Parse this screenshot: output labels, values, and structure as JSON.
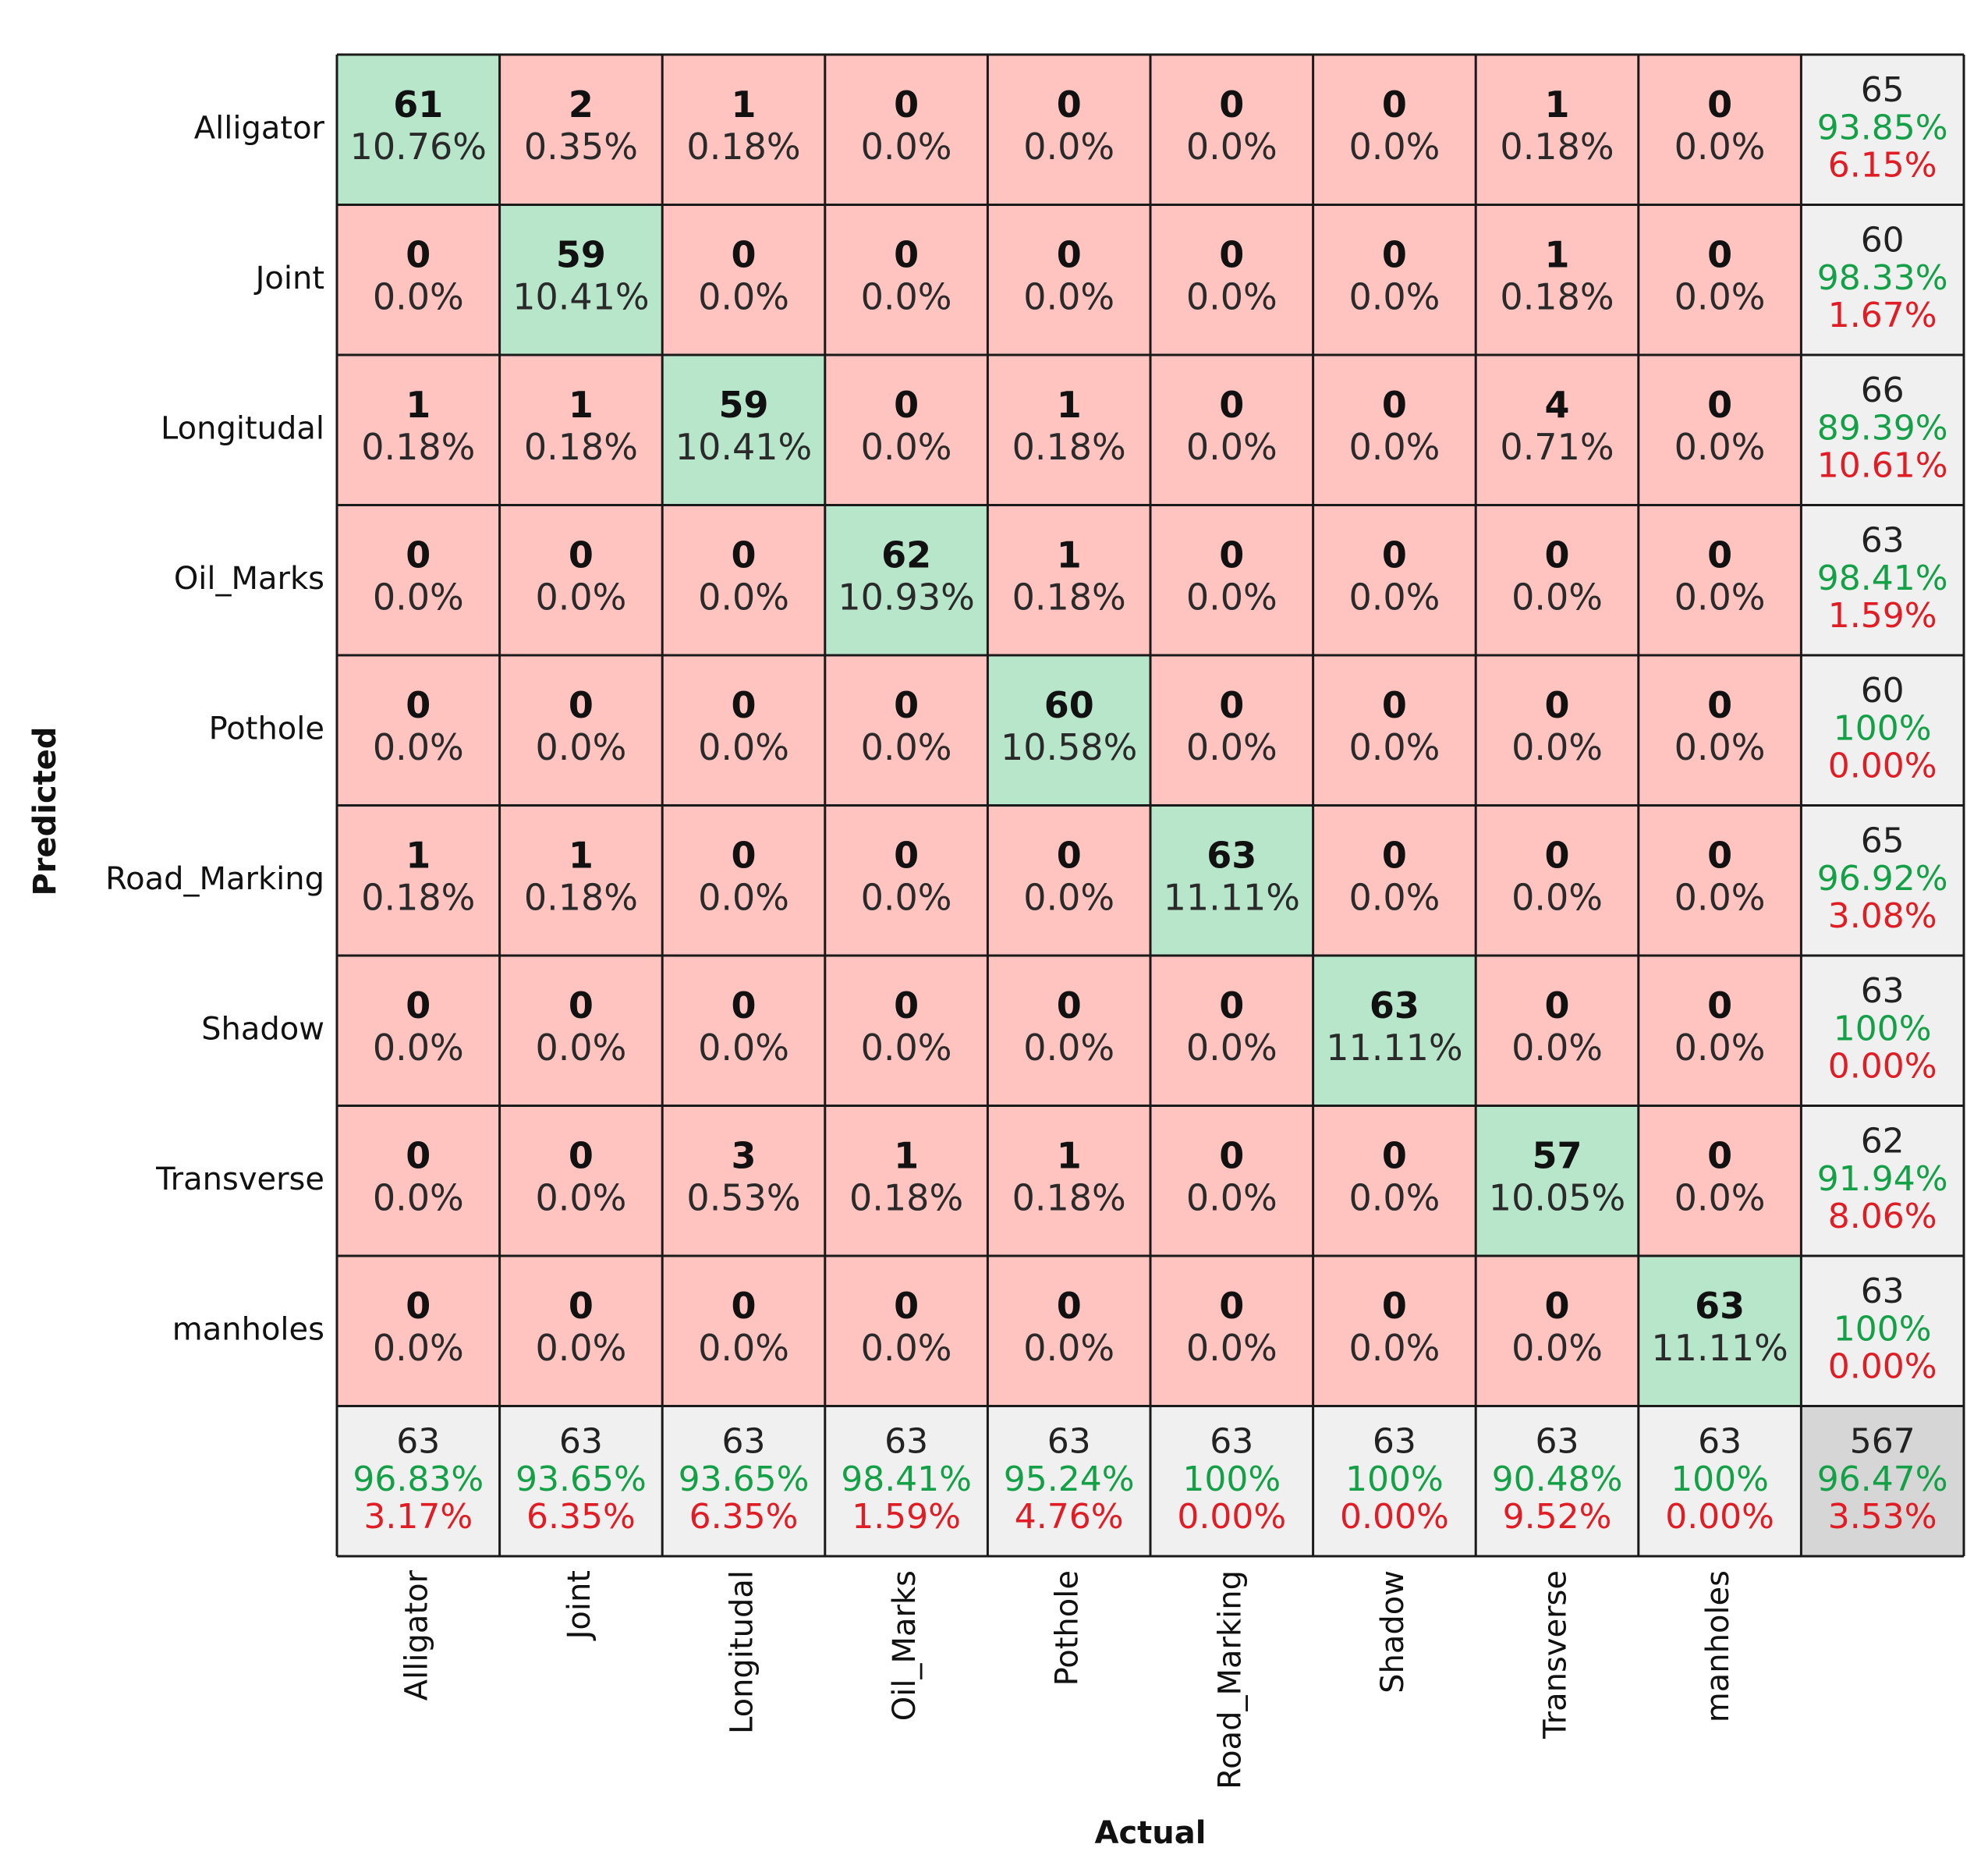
{
  "chart_data": {
    "type": "heatmap",
    "title": "",
    "xlabel": "Actual",
    "ylabel": "Predicted",
    "categories": [
      "Alligator",
      "Joint",
      "Longitudal",
      "Oil_Marks",
      "Pothole",
      "Road_Marking",
      "Shadow",
      "Transverse",
      "manholes"
    ],
    "matrix": [
      [
        61,
        2,
        1,
        0,
        0,
        0,
        0,
        1,
        0
      ],
      [
        0,
        59,
        0,
        0,
        0,
        0,
        0,
        1,
        0
      ],
      [
        1,
        1,
        59,
        0,
        1,
        0,
        0,
        4,
        0
      ],
      [
        0,
        0,
        0,
        62,
        1,
        0,
        0,
        0,
        0
      ],
      [
        0,
        0,
        0,
        0,
        60,
        0,
        0,
        0,
        0
      ],
      [
        1,
        1,
        0,
        0,
        0,
        63,
        0,
        0,
        0
      ],
      [
        0,
        0,
        0,
        0,
        0,
        0,
        63,
        0,
        0
      ],
      [
        0,
        0,
        3,
        1,
        1,
        0,
        0,
        57,
        0
      ],
      [
        0,
        0,
        0,
        0,
        0,
        0,
        0,
        0,
        63
      ]
    ],
    "matrix_percent": [
      [
        "10.76%",
        "0.35%",
        "0.18%",
        "0.0%",
        "0.0%",
        "0.0%",
        "0.0%",
        "0.18%",
        "0.0%"
      ],
      [
        "0.0%",
        "10.41%",
        "0.0%",
        "0.0%",
        "0.0%",
        "0.0%",
        "0.0%",
        "0.18%",
        "0.0%"
      ],
      [
        "0.18%",
        "0.18%",
        "10.41%",
        "0.0%",
        "0.18%",
        "0.0%",
        "0.0%",
        "0.71%",
        "0.0%"
      ],
      [
        "0.0%",
        "0.0%",
        "0.0%",
        "10.93%",
        "0.18%",
        "0.0%",
        "0.0%",
        "0.0%",
        "0.0%"
      ],
      [
        "0.0%",
        "0.0%",
        "0.0%",
        "0.0%",
        "10.58%",
        "0.0%",
        "0.0%",
        "0.0%",
        "0.0%"
      ],
      [
        "0.18%",
        "0.18%",
        "0.0%",
        "0.0%",
        "0.0%",
        "11.11%",
        "0.0%",
        "0.0%",
        "0.0%"
      ],
      [
        "0.0%",
        "0.0%",
        "0.0%",
        "0.0%",
        "0.0%",
        "0.0%",
        "11.11%",
        "0.0%",
        "0.0%"
      ],
      [
        "0.0%",
        "0.0%",
        "0.53%",
        "0.18%",
        "0.18%",
        "0.0%",
        "0.0%",
        "10.05%",
        "0.0%"
      ],
      [
        "0.0%",
        "0.0%",
        "0.0%",
        "0.0%",
        "0.0%",
        "0.0%",
        "0.0%",
        "0.0%",
        "11.11%"
      ]
    ],
    "row_summary": [
      {
        "total": "65",
        "correct": "93.85%",
        "error": "6.15%"
      },
      {
        "total": "60",
        "correct": "98.33%",
        "error": "1.67%"
      },
      {
        "total": "66",
        "correct": "89.39%",
        "error": "10.61%"
      },
      {
        "total": "63",
        "correct": "98.41%",
        "error": "1.59%"
      },
      {
        "total": "60",
        "correct": "100%",
        "error": "0.00%"
      },
      {
        "total": "65",
        "correct": "96.92%",
        "error": "3.08%"
      },
      {
        "total": "63",
        "correct": "100%",
        "error": "0.00%"
      },
      {
        "total": "62",
        "correct": "91.94%",
        "error": "8.06%"
      },
      {
        "total": "63",
        "correct": "100%",
        "error": "0.00%"
      }
    ],
    "column_summary": [
      {
        "total": "63",
        "correct": "96.83%",
        "error": "3.17%"
      },
      {
        "total": "63",
        "correct": "93.65%",
        "error": "6.35%"
      },
      {
        "total": "63",
        "correct": "93.65%",
        "error": "6.35%"
      },
      {
        "total": "63",
        "correct": "98.41%",
        "error": "1.59%"
      },
      {
        "total": "63",
        "correct": "95.24%",
        "error": "4.76%"
      },
      {
        "total": "63",
        "correct": "100%",
        "error": "0.00%"
      },
      {
        "total": "63",
        "correct": "100%",
        "error": "0.00%"
      },
      {
        "total": "63",
        "correct": "90.48%",
        "error": "9.52%"
      },
      {
        "total": "63",
        "correct": "100%",
        "error": "0.00%"
      }
    ],
    "overall": {
      "total": "567",
      "correct": "96.47%",
      "error": "3.53%"
    },
    "colors": {
      "correct_cell": "#b8e6cb",
      "error_cell": "#ffc4c0",
      "summary_cell": "#f0f0f0",
      "overall_cell": "#d6d6d6",
      "correct_text": "#14a046",
      "error_text": "#e01c24"
    }
  }
}
